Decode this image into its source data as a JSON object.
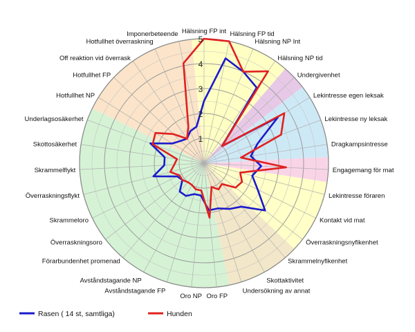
{
  "chart_data": {
    "type": "radar",
    "categories": [
      "Hälsning FP int",
      "Hälsning FP tid",
      "Hälsning NP Int",
      "Hälsning NP tid",
      "Undergivenhet",
      "Lekintresse egen leksak",
      "Lekintresse ny leksak",
      "Dragkampsintresse",
      "Engagemang för mat",
      "Lekintresse föraren",
      "Kontakt vid mat",
      "Överraskningsnyfikenhet",
      "Skrammelnyfikenhet",
      "Skottaktivitet",
      "Undersökning av annat",
      "Oro FP",
      "Oro NP",
      "Avståndstagande FP",
      "Avståndstagande NP",
      "Förarbundenhet promenad",
      "Överraskningsoro",
      "Skrammeloro",
      "Överraskningsflykt",
      "Skrammelflykt",
      "Skottosäkerhet",
      "Underlagsosäkerhet",
      "Hotfullhet NP",
      "Hotfullhet FP",
      "Off reaktion vid överrask",
      "Hotfullhet överraskning",
      "Imponerbeteende"
    ],
    "rmin": 0,
    "rmax": 5,
    "ticks": [
      1,
      2,
      3,
      4,
      5
    ],
    "series": [
      {
        "name": "Rasen ( 14 st, samtliga)",
        "color": "#1a1acc",
        "values": [
          2.5,
          4.3,
          4.0,
          3.7,
          1.0,
          3.5,
          2.3,
          1.9,
          2.3,
          2.0,
          2.4,
          3.1,
          2.3,
          2.1,
          1.9,
          1.9,
          1.3,
          1.3,
          1.5,
          1.5,
          1.1,
          1.2,
          2.1,
          1.6,
          1.6,
          2.3,
          1.5,
          1.3,
          1.2,
          1.4,
          1.5
        ]
      },
      {
        "name": "Hunden",
        "color": "#e02020",
        "values": [
          5.0,
          5.0,
          4.0,
          4.5,
          1.0,
          3.8,
          3.3,
          1.5,
          3.3,
          1.5,
          1.7,
          1.6,
          1.1,
          1.2,
          1.0,
          2.2,
          1.1,
          1.1,
          1.0,
          1.0,
          1.1,
          1.1,
          1.4,
          1.2,
          1.1,
          2.2,
          2.3,
          1.7,
          1.2,
          1.6,
          4.1
        ]
      }
    ],
    "sectors": [
      {
        "from": 0,
        "to": 4,
        "color": "#ffffc0"
      },
      {
        "from": 4,
        "to": 5,
        "color": "#e6c6e6"
      },
      {
        "from": 5,
        "to": 8,
        "color": "#cbe8f5"
      },
      {
        "from": 8,
        "to": 9,
        "color": "#f9d2e6"
      },
      {
        "from": 9,
        "to": 12,
        "color": "#ffffc4"
      },
      {
        "from": 12,
        "to": 15,
        "color": "#f1e6c6"
      },
      {
        "from": 15,
        "to": 26,
        "color": "#d3f1d3"
      },
      {
        "from": 26,
        "to": 31,
        "color": "#fbe3c6"
      }
    ],
    "grid": true,
    "legend_position": "bottom-left"
  }
}
